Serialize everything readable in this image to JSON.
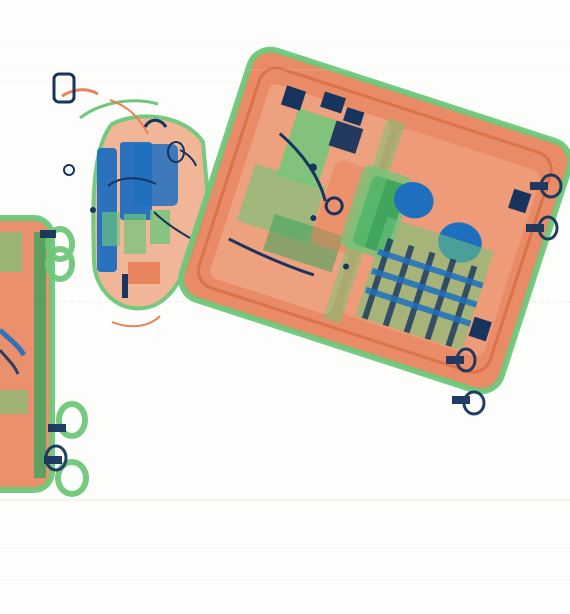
{
  "scan": {
    "colors": {
      "background": "#fdfdfc",
      "organic_orange": "#e8825a",
      "organic_light": "#f1b08f",
      "inorganic_green": "#6ec87a",
      "green_dark": "#3aa35a",
      "metal_blue": "#1f6fbf",
      "metal_dark": "#17345f",
      "outline": "#d86f47"
    }
  }
}
